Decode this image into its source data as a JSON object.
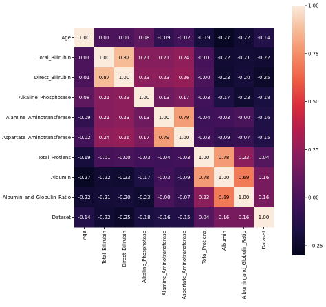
{
  "chart_data": {
    "type": "heatmap",
    "title": "",
    "xlabel": "",
    "ylabel": "",
    "labels": [
      "Age",
      "Total_Bilirubin",
      "Direct_Bilirubin",
      "Alkaline_Phosphotase",
      "Alamine_Aminotransferase",
      "Aspartate_Aminotransferase",
      "Total_Protiens",
      "Albumin",
      "Albumin_and_Globulin_Ratio",
      "Dataset"
    ],
    "matrix": [
      [
        1.0,
        0.01,
        0.01,
        0.08,
        -0.09,
        -0.02,
        -0.19,
        -0.27,
        -0.22,
        -0.14
      ],
      [
        0.01,
        1.0,
        0.87,
        0.21,
        0.21,
        0.24,
        -0.01,
        -0.22,
        -0.21,
        -0.22
      ],
      [
        0.01,
        0.87,
        1.0,
        0.23,
        0.23,
        0.26,
        -0.0,
        -0.23,
        -0.2,
        -0.25
      ],
      [
        0.08,
        0.21,
        0.23,
        1.0,
        0.13,
        0.17,
        -0.03,
        -0.17,
        -0.23,
        -0.18
      ],
      [
        -0.09,
        0.21,
        0.23,
        0.13,
        1.0,
        0.79,
        -0.04,
        -0.03,
        -0.0,
        -0.16
      ],
      [
        -0.02,
        0.24,
        0.26,
        0.17,
        0.79,
        1.0,
        -0.03,
        -0.09,
        -0.07,
        -0.15
      ],
      [
        -0.19,
        -0.01,
        -0.0,
        -0.03,
        -0.04,
        -0.03,
        1.0,
        0.78,
        0.23,
        0.04
      ],
      [
        -0.27,
        -0.22,
        -0.23,
        -0.17,
        -0.03,
        -0.09,
        0.78,
        1.0,
        0.69,
        0.16
      ],
      [
        -0.22,
        -0.21,
        -0.2,
        -0.23,
        -0.0,
        -0.07,
        0.23,
        0.69,
        1.0,
        0.16
      ],
      [
        -0.14,
        -0.22,
        -0.25,
        -0.18,
        -0.16,
        -0.15,
        0.04,
        0.16,
        0.16,
        1.0
      ]
    ],
    "colorbar": {
      "range": [
        -0.3,
        1.0
      ],
      "ticks": [
        "1.00",
        "0.75",
        "0.50",
        "0.25",
        "0.00",
        "−0.25"
      ],
      "tick_values": [
        1.0,
        0.75,
        0.5,
        0.25,
        0.0,
        -0.25
      ],
      "colormap": "rocket"
    },
    "value_format": "2 decimals",
    "grid": false,
    "legend": "colorbar-right"
  }
}
